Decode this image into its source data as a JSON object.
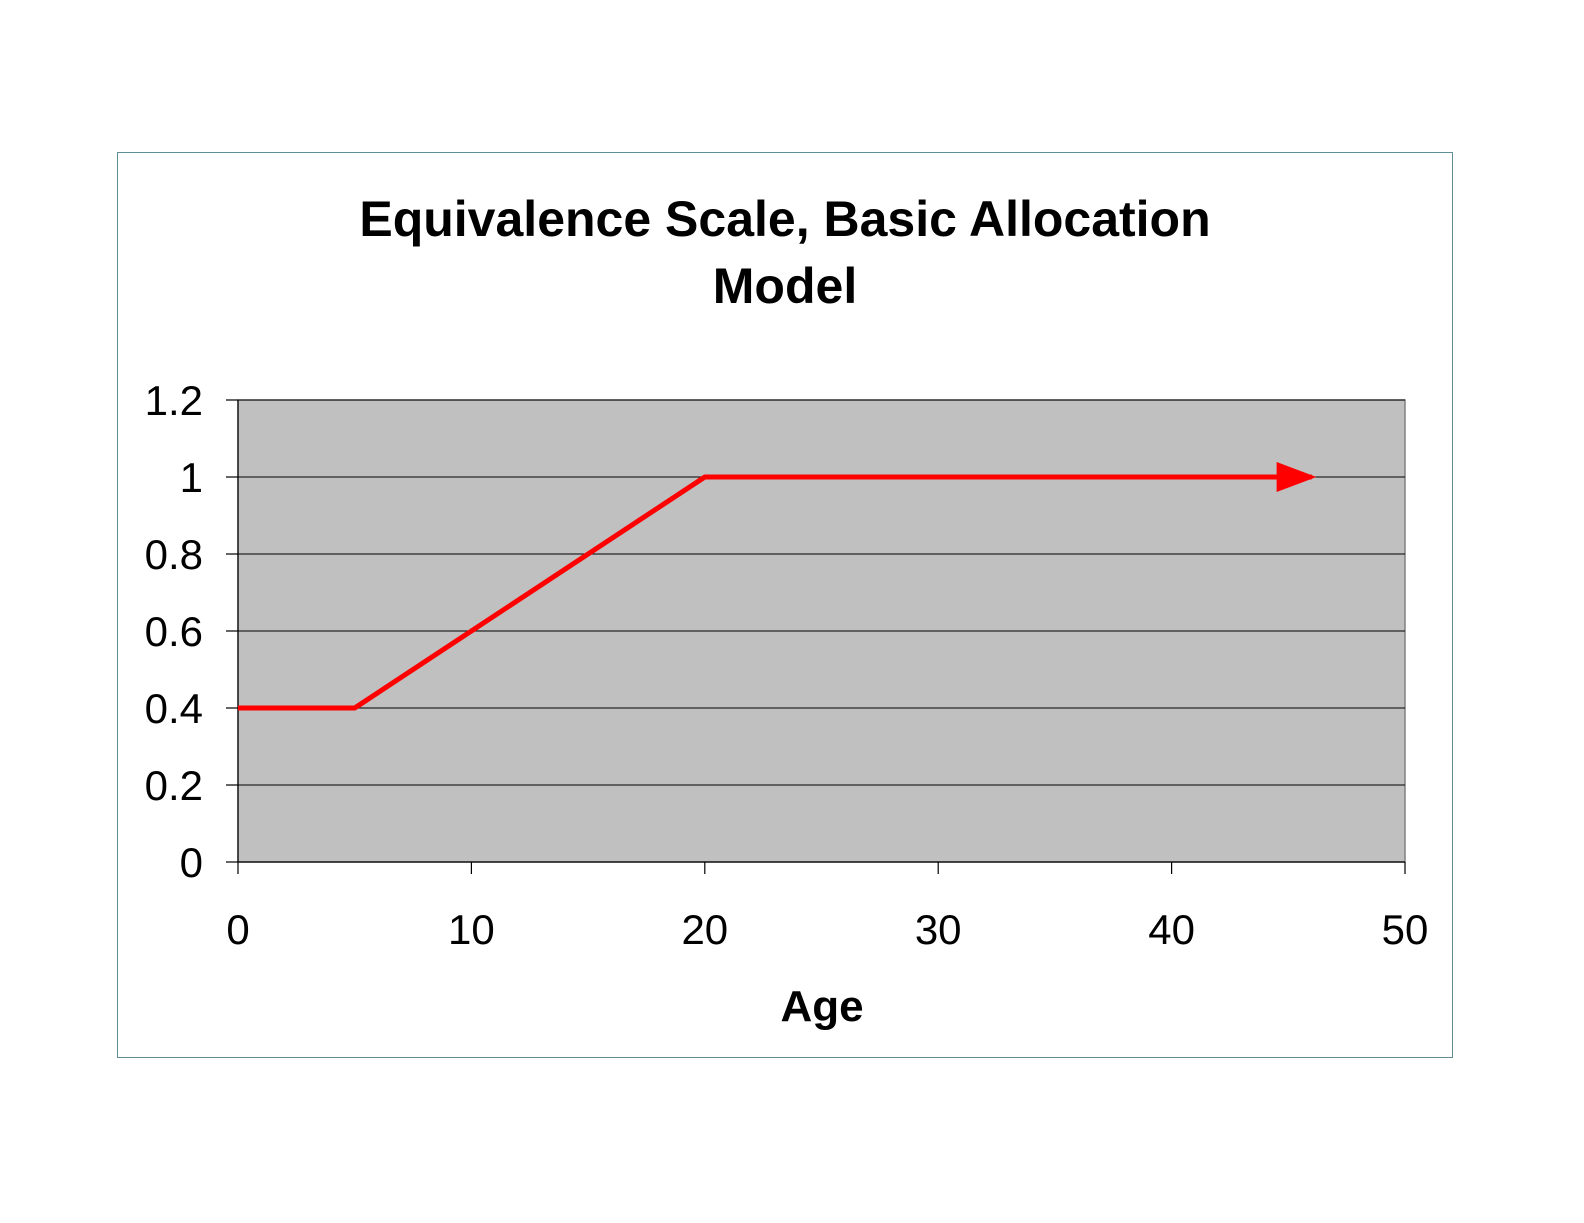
{
  "chart_data": {
    "type": "line",
    "title_lines": [
      "Equivalence Scale, Basic Allocation",
      "Model"
    ],
    "xlabel": "Age",
    "ylabel": "",
    "xlim": [
      0,
      50
    ],
    "ylim": [
      0,
      1.2
    ],
    "x_ticks": [
      0,
      10,
      20,
      30,
      40,
      50
    ],
    "y_ticks": [
      0,
      0.2,
      0.4,
      0.6,
      0.8,
      1,
      1.2
    ],
    "x_tick_labels": [
      "0",
      "10",
      "20",
      "30",
      "40",
      "50"
    ],
    "y_tick_labels": [
      "0",
      "0.2",
      "0.4",
      "0.6",
      "0.8",
      "1",
      "1.2"
    ],
    "grid": "horizontal",
    "legend": "none",
    "series": [
      {
        "x": [
          0,
          5,
          20,
          46
        ],
        "y": [
          0.4,
          0.4,
          1,
          1
        ],
        "arrow_end": true
      }
    ],
    "colors": {
      "plot_background": "#c0c0c0",
      "line": "#ff0000",
      "grid": "#000000",
      "frame_border": "#5f8f94"
    }
  }
}
